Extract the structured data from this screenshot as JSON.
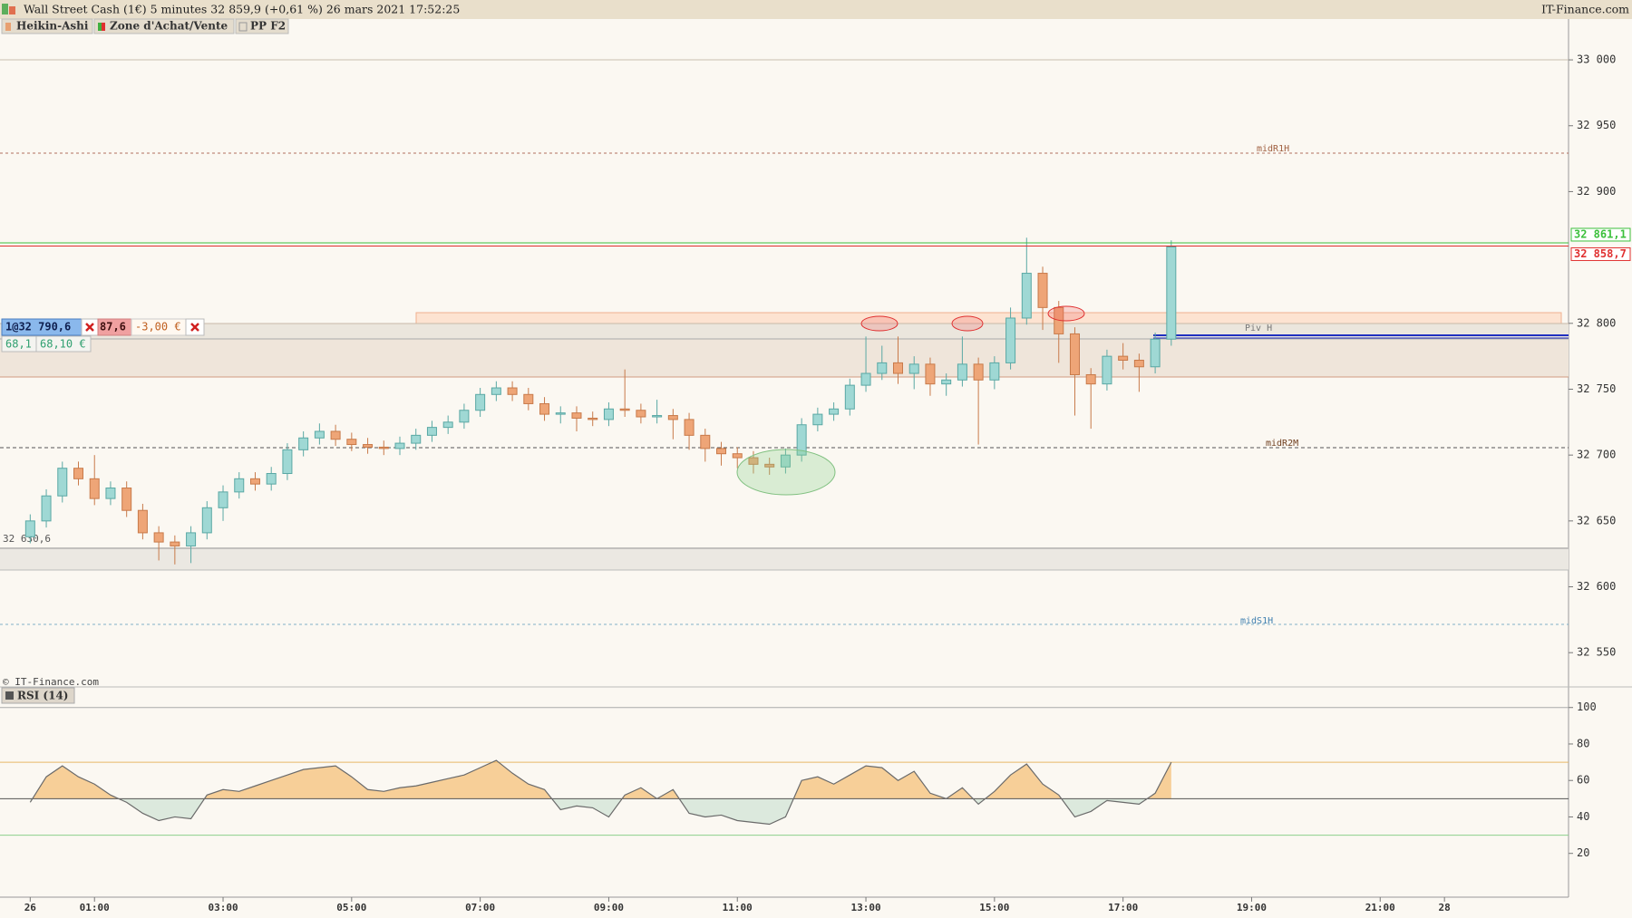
{
  "header": {
    "title": "Wall Street Cash (1€) 5 minutes 32 859,9 (+0,61 %) 26 mars 2021 17:52:25",
    "brand": "IT-Finance.com"
  },
  "tags": [
    "Heikin-Ashi",
    "Zone d'Achat/Vente",
    "PP F2"
  ],
  "order_widget": {
    "position": "1@32 790,6",
    "price_partial": "87,6",
    "pnl": "-3,00 €",
    "qty": "68,1",
    "amount": "68,10 €"
  },
  "watermark": "© IT-Finance.com",
  "chart_data": [
    {
      "type": "candlestick",
      "x": [
        "00:00",
        "00:15",
        "00:30",
        "00:45",
        "01:00",
        "01:15",
        "01:30",
        "01:45",
        "02:00",
        "02:15",
        "02:30",
        "02:45",
        "03:00",
        "03:15",
        "03:30",
        "03:45",
        "04:00",
        "04:15",
        "04:30",
        "04:45",
        "05:00",
        "05:15",
        "05:30",
        "05:45",
        "06:00",
        "06:15",
        "06:30",
        "06:45",
        "07:00",
        "07:15",
        "07:30",
        "07:45",
        "08:00",
        "08:15",
        "08:30",
        "08:45",
        "09:00",
        "09:15",
        "09:30",
        "09:45",
        "10:00",
        "10:15",
        "10:30",
        "10:45",
        "11:00",
        "11:15",
        "11:30",
        "11:45",
        "12:00",
        "12:15",
        "12:30",
        "12:45",
        "13:00",
        "13:15",
        "13:30",
        "13:45",
        "14:00",
        "14:15",
        "14:30",
        "14:45",
        "15:00",
        "15:15",
        "15:30",
        "15:45",
        "16:00",
        "16:15",
        "16:30",
        "16:45",
        "17:00",
        "17:15",
        "17:30",
        "17:45"
      ],
      "open": [
        32638,
        32650,
        32669,
        32690,
        32682,
        32667,
        32675,
        32658,
        32641,
        32634,
        32631,
        32641,
        32660,
        32672,
        32682,
        32678,
        32686,
        32704,
        32713,
        32718,
        32712,
        32708,
        32706,
        32705,
        32709,
        32715,
        32721,
        32725,
        32734,
        32746,
        32751,
        32746,
        32739,
        32731,
        32732,
        32728,
        32727,
        32735,
        32734,
        32729,
        32730,
        32727,
        32715,
        32705,
        32701,
        32698,
        32693,
        32691,
        32700,
        32723,
        32731,
        32735,
        32753,
        32762,
        32770,
        32762,
        32769,
        32754,
        32757,
        32769,
        32757,
        32770,
        32804,
        32838,
        32812,
        32792,
        32761,
        32754,
        32775,
        32772,
        32767,
        32788
      ],
      "high": [
        32655,
        32674,
        32695,
        32695,
        32700,
        32680,
        32680,
        32663,
        32646,
        32639,
        32646,
        32665,
        32677,
        32687,
        32687,
        32691,
        32709,
        32718,
        32724,
        32723,
        32717,
        32713,
        32711,
        32714,
        32720,
        32726,
        32730,
        32739,
        32751,
        32756,
        32756,
        32751,
        32744,
        32737,
        32737,
        32733,
        32740,
        32765,
        32739,
        32742,
        32735,
        32732,
        32720,
        32710,
        32706,
        32703,
        32698,
        32705,
        32728,
        32736,
        32740,
        32758,
        32790,
        32783,
        32790,
        32775,
        32774,
        32762,
        32790,
        32774,
        32775,
        32812,
        32865,
        32843,
        32817,
        32797,
        32766,
        32780,
        32785,
        32777,
        32793,
        32863
      ],
      "low": [
        32633,
        32645,
        32664,
        32677,
        32662,
        32662,
        32653,
        32636,
        32620,
        32617,
        32618,
        32636,
        32650,
        32667,
        32673,
        32673,
        32681,
        32699,
        32708,
        32707,
        32703,
        32701,
        32700,
        32700,
        32704,
        32710,
        32716,
        32720,
        32729,
        32741,
        32741,
        32734,
        32726,
        32724,
        32718,
        32722,
        32722,
        32729,
        32724,
        32724,
        32712,
        32704,
        32695,
        32692,
        32690,
        32686,
        32685,
        32686,
        32695,
        32718,
        32726,
        32730,
        32748,
        32757,
        32754,
        32750,
        32745,
        32745,
        32752,
        32708,
        32750,
        32765,
        32799,
        32795,
        32770,
        32730,
        32720,
        32749,
        32765,
        32748,
        32762,
        32783
      ],
      "close": [
        32650,
        32669,
        32690,
        32682,
        32667,
        32675,
        32658,
        32641,
        32634,
        32631,
        32641,
        32660,
        32672,
        32682,
        32678,
        32686,
        32704,
        32713,
        32718,
        32712,
        32708,
        32706,
        32705,
        32709,
        32715,
        32721,
        32725,
        32734,
        32746,
        32751,
        32746,
        32739,
        32731,
        32732,
        32728,
        32727,
        32735,
        32734,
        32729,
        32730,
        32727,
        32715,
        32705,
        32701,
        32698,
        32693,
        32691,
        32700,
        32723,
        32731,
        32735,
        32753,
        32762,
        32770,
        32762,
        32769,
        32754,
        32757,
        32769,
        32757,
        32770,
        32804,
        32838,
        32812,
        32792,
        32761,
        32754,
        32775,
        32772,
        32767,
        32788,
        32858
      ],
      "up_color": "#9fd8d4",
      "down_color": "#eea577",
      "xlim": [
        -0.47,
        23.93
      ],
      "xticks": [
        {
          "value": 0,
          "label": "26"
        },
        {
          "value": 1,
          "label": "01:00"
        },
        {
          "value": 3,
          "label": "03:00"
        },
        {
          "value": 5,
          "label": "05:00"
        },
        {
          "value": 7,
          "label": "07:00"
        },
        {
          "value": 9,
          "label": "09:00"
        },
        {
          "value": 11,
          "label": "11:00"
        },
        {
          "value": 13,
          "label": "13:00"
        },
        {
          "value": 15,
          "label": "15:00"
        },
        {
          "value": 17,
          "label": "17:00"
        },
        {
          "value": 19,
          "label": "19:00"
        },
        {
          "value": 21,
          "label": "21:00"
        },
        {
          "value": 22,
          "label": "28"
        }
      ],
      "ylim": [
        32524,
        33031
      ],
      "yticks": [
        {
          "value": 32550,
          "label": "32 550"
        },
        {
          "value": 32600,
          "label": "32 600"
        },
        {
          "value": 32650,
          "label": "32 650"
        },
        {
          "value": 32700,
          "label": "32 700"
        },
        {
          "value": 32750,
          "label": "32 750"
        },
        {
          "value": 32800,
          "label": "32 800"
        },
        {
          "value": 32900,
          "label": "32 900"
        },
        {
          "value": 32950,
          "label": "32 950"
        },
        {
          "value": 33000,
          "label": "33 000"
        }
      ],
      "price_lines": [
        {
          "value": 32861.1,
          "label": "32 861,1",
          "color": "#3cc03c"
        },
        {
          "value": 32858.7,
          "label": "32 858,7",
          "color": "#e03030"
        }
      ],
      "level_label": "32 630,6",
      "pivot_labels": [
        "midR1H",
        "Piv H",
        "midR2M",
        "midS1H"
      ]
    },
    {
      "type": "line",
      "title": "RSI (14)",
      "x": [
        "00:00",
        "00:15",
        "00:30",
        "00:45",
        "01:00",
        "01:15",
        "01:30",
        "01:45",
        "02:00",
        "02:15",
        "02:30",
        "02:45",
        "03:00",
        "03:15",
        "03:30",
        "03:45",
        "04:00",
        "04:15",
        "04:30",
        "04:45",
        "05:00",
        "05:15",
        "05:30",
        "05:45",
        "06:00",
        "06:15",
        "06:30",
        "06:45",
        "07:00",
        "07:15",
        "07:30",
        "07:45",
        "08:00",
        "08:15",
        "08:30",
        "08:45",
        "09:00",
        "09:15",
        "09:30",
        "09:45",
        "10:00",
        "10:15",
        "10:30",
        "10:45",
        "11:00",
        "11:15",
        "11:30",
        "11:45",
        "12:00",
        "12:15",
        "12:30",
        "12:45",
        "13:00",
        "13:15",
        "13:30",
        "13:45",
        "14:00",
        "14:15",
        "14:30",
        "14:45",
        "15:00",
        "15:15",
        "15:30",
        "15:45",
        "16:00",
        "16:15",
        "16:30",
        "16:45",
        "17:00",
        "17:15",
        "17:30",
        "17:45"
      ],
      "values": [
        48,
        62,
        68,
        62,
        58,
        52,
        48,
        42,
        38,
        40,
        39,
        52,
        55,
        54,
        57,
        60,
        63,
        66,
        67,
        68,
        62,
        55,
        54,
        56,
        57,
        59,
        61,
        63,
        67,
        71,
        64,
        58,
        55,
        44,
        46,
        45,
        40,
        52,
        56,
        50,
        55,
        42,
        40,
        41,
        38,
        37,
        36,
        40,
        60,
        62,
        58,
        63,
        68,
        67,
        60,
        65,
        53,
        50,
        56,
        47,
        54,
        63,
        69,
        58,
        52,
        40,
        43,
        49,
        48,
        47,
        53,
        70
      ],
      "color": "#6a6a6a",
      "fill_above": "#f7cf98",
      "fill_below": "#dce9dd",
      "ylim": [
        -4,
        110.3
      ],
      "yticks": [
        20,
        40,
        60,
        80,
        100
      ],
      "levels": [
        {
          "value": 70,
          "color": "#e8b868"
        },
        {
          "value": 50,
          "color": "#555555"
        },
        {
          "value": 30,
          "color": "#8cd08c"
        }
      ]
    }
  ]
}
